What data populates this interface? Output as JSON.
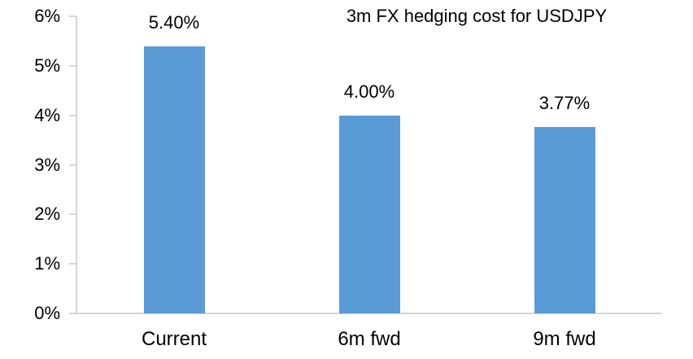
{
  "chart_data": {
    "type": "bar",
    "title": "3m FX hedging cost for USDJPY",
    "categories": [
      "Current",
      "6m fwd",
      "9m fwd"
    ],
    "values": [
      5.4,
      4.0,
      3.77
    ],
    "data_labels": [
      "5.40%",
      "4.00%",
      "3.77%"
    ],
    "xlabel": "",
    "ylabel": "",
    "ylim": [
      0,
      6
    ],
    "yticks": [
      0,
      1,
      2,
      3,
      4,
      5,
      6
    ],
    "ytick_labels": [
      "0%",
      "1%",
      "2%",
      "3%",
      "4%",
      "5%",
      "6%"
    ],
    "grid": false,
    "legend": "none",
    "colors": {
      "bar": "#5B9BD5",
      "axis": "#D5D5D5",
      "text": "#000000",
      "background": "#FFFFFF"
    }
  }
}
